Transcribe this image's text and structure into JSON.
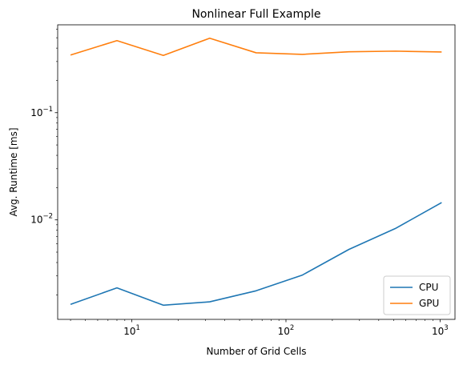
{
  "chart_data": {
    "type": "line",
    "title": "Nonlinear Full Example",
    "xlabel": "Number of Grid Cells",
    "ylabel": "Avg. Runtime [ms]",
    "x_scale": "log",
    "y_scale": "log",
    "xlim": [
      3.3,
      1250
    ],
    "ylim": [
      0.00118,
      0.66
    ],
    "x": [
      4,
      8,
      16,
      32,
      64,
      128,
      256,
      512,
      1024
    ],
    "x_major_ticks": [
      {
        "value": 10,
        "base": "10",
        "exp": "1"
      },
      {
        "value": 100,
        "base": "10",
        "exp": "2"
      },
      {
        "value": 1000,
        "base": "10",
        "exp": "3"
      }
    ],
    "y_major_ticks": [
      {
        "value": 0.01,
        "base": "10",
        "exp": "−2"
      },
      {
        "value": 0.1,
        "base": "10",
        "exp": "−1"
      }
    ],
    "series": [
      {
        "name": "CPU",
        "color": "#1f77b4",
        "values": [
          0.00163,
          0.00232,
          0.0016,
          0.00172,
          0.00218,
          0.00306,
          0.0053,
          0.0083,
          0.0145
        ]
      },
      {
        "name": "GPU",
        "color": "#ff7f0e",
        "values": [
          0.345,
          0.47,
          0.342,
          0.495,
          0.362,
          0.35,
          0.37,
          0.375,
          0.368
        ]
      }
    ],
    "legend_position": "lower-right",
    "grid": false
  }
}
